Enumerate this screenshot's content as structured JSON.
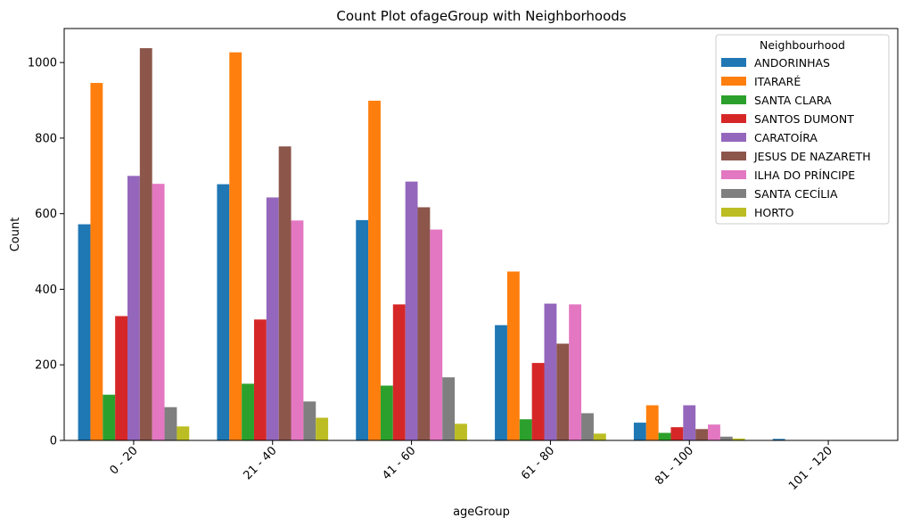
{
  "chart_data": {
    "type": "bar",
    "title": "Count Plot ofageGroup with Neighborhoods",
    "xlabel": "ageGroup",
    "ylabel": "Count",
    "ylim": [
      0,
      1090
    ],
    "yticks": [
      0,
      200,
      400,
      600,
      800,
      1000
    ],
    "categories": [
      "0 - 20",
      "21 - 40",
      "41 - 60",
      "61 - 80",
      "81 - 100",
      "101 - 120"
    ],
    "grid": false,
    "legend_title": "Neighbourhood",
    "legend_position": "top-right",
    "series": [
      {
        "name": "ANDORINHAS",
        "color": "#1f77b4",
        "values": [
          572,
          678,
          583,
          305,
          47,
          4
        ]
      },
      {
        "name": "ITARARÉ",
        "color": "#ff7f0e",
        "values": [
          946,
          1027,
          899,
          447,
          93,
          0
        ]
      },
      {
        "name": "SANTA CLARA",
        "color": "#2ca02c",
        "values": [
          121,
          150,
          145,
          56,
          20,
          0
        ]
      },
      {
        "name": "SANTOS DUMONT",
        "color": "#d62728",
        "values": [
          329,
          320,
          360,
          205,
          35,
          0
        ]
      },
      {
        "name": "CARATOÍRA",
        "color": "#9467bd",
        "values": [
          700,
          643,
          685,
          362,
          93,
          0
        ]
      },
      {
        "name": "JESUS DE NAZARETH",
        "color": "#8c564b",
        "values": [
          1038,
          778,
          617,
          256,
          30,
          0
        ]
      },
      {
        "name": "ILHA DO PRÍNCIPE",
        "color": "#e377c2",
        "values": [
          679,
          582,
          558,
          360,
          42,
          0
        ]
      },
      {
        "name": "SANTA CECÍLIA",
        "color": "#7f7f7f",
        "values": [
          88,
          103,
          167,
          72,
          10,
          0
        ]
      },
      {
        "name": "HORTO",
        "color": "#bcbd22",
        "values": [
          37,
          60,
          44,
          18,
          5,
          0
        ]
      }
    ]
  }
}
